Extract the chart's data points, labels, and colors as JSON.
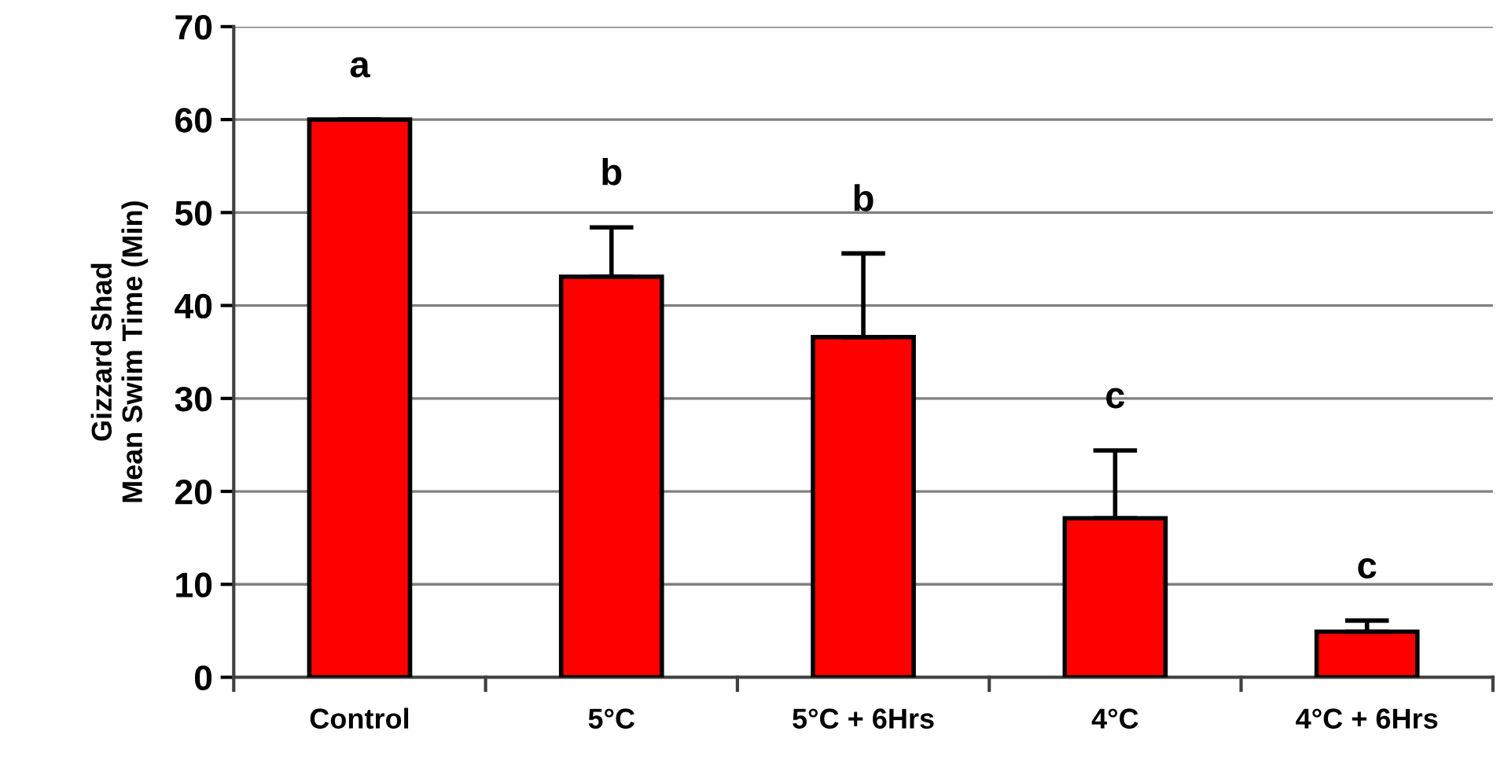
{
  "chart_data": {
    "type": "bar",
    "ylabel": "Gizzard Shad\nMean Swim Time (Min)",
    "categories": [
      "Control",
      "5°C",
      "5°C + 6Hrs",
      "4°C",
      "4°C + 6Hrs"
    ],
    "values": [
      60,
      43.1,
      36.6,
      17.1,
      4.9
    ],
    "errors": [
      0,
      5.3,
      9.0,
      7.3,
      1.2
    ],
    "color": "#ff0000",
    "ylim": [
      0,
      70
    ],
    "yticks": [
      0,
      10,
      20,
      30,
      40,
      50,
      60,
      70
    ],
    "grid": "y",
    "annotations": [
      "a",
      "b",
      "b",
      "c",
      "c"
    ]
  }
}
